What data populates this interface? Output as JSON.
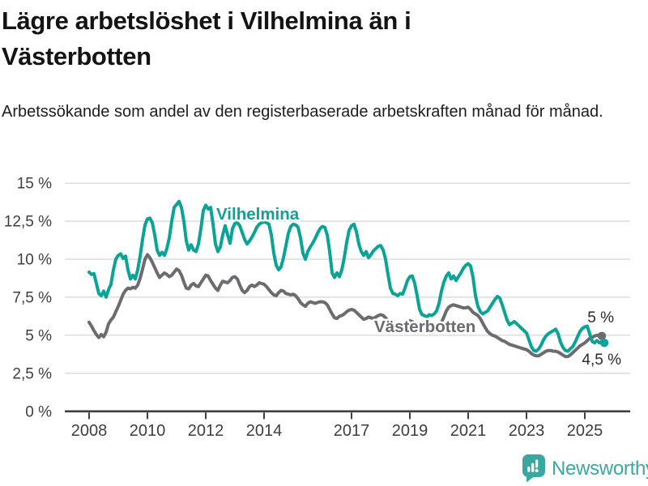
{
  "header": {
    "title": "Lägre arbetslöshet i Vilhelmina än i Västerbotten",
    "subtitle": "Arbetssökande som andel av den registerbaserade arbetskraften månad för månad."
  },
  "branding": {
    "name": "Newsworthy",
    "icon": "speech-bubble-bar-chart-icon",
    "color": "#3ba7a0"
  },
  "chart_data": {
    "type": "line",
    "x_unit": "months",
    "x_start_year": 2008,
    "x_step_months": 1,
    "grid": true,
    "style": {
      "grid_color": "#d6d6d6",
      "axis_color": "#3e3e3e",
      "tick_label_color": "#3e3e3e",
      "annotation_color": "#2a2a2a"
    },
    "y_axis": {
      "min": 0,
      "max": 15,
      "tick_values": [
        0,
        2.5,
        5,
        7.5,
        10,
        12.5,
        15
      ],
      "tick_labels": [
        "0 %",
        "2,5 %",
        "5 %",
        "7,5 %",
        "10 %",
        "12,5 %",
        "15 %"
      ]
    },
    "x_axis": {
      "tick_years": [
        2008,
        2010,
        2012,
        2014,
        2017,
        2019,
        2021,
        2023,
        2025
      ],
      "tick_labels": [
        "2008",
        "2010",
        "2012",
        "2014",
        "2017",
        "2019",
        "2021",
        "2023",
        "2025"
      ]
    },
    "series": [
      {
        "name": "Vilhelmina",
        "color": "#0aa396",
        "end_value_label": "4,5 %",
        "values": [
          9.15,
          9.0,
          9.05,
          8.4,
          7.75,
          7.6,
          7.9,
          7.5,
          8.0,
          8.35,
          9.3,
          10.0,
          10.25,
          10.35,
          10.05,
          10.2,
          9.3,
          8.7,
          8.95,
          8.7,
          9.3,
          10.2,
          11.3,
          12.25,
          12.65,
          12.7,
          12.4,
          11.6,
          10.6,
          10.25,
          10.45,
          10.25,
          10.7,
          11.4,
          12.5,
          13.4,
          13.6,
          13.8,
          13.4,
          12.5,
          11.2,
          10.6,
          10.95,
          10.6,
          10.5,
          11.0,
          12.0,
          13.2,
          13.55,
          13.3,
          13.4,
          12.3,
          11.0,
          10.5,
          10.8,
          11.6,
          12.2,
          11.6,
          11.05,
          12.0,
          12.35,
          12.4,
          12.2,
          11.75,
          11.3,
          11.0,
          11.2,
          11.45,
          11.75,
          12.1,
          12.3,
          12.4,
          12.45,
          12.4,
          12.3,
          11.6,
          10.4,
          9.6,
          9.3,
          9.5,
          10.1,
          10.9,
          11.7,
          12.15,
          12.3,
          12.25,
          12.1,
          11.4,
          10.4,
          10.0,
          10.5,
          10.8,
          11.05,
          11.35,
          11.7,
          12.0,
          12.15,
          12.1,
          11.6,
          10.5,
          9.1,
          8.8,
          9.1,
          8.85,
          9.3,
          10.1,
          11.1,
          11.9,
          12.2,
          12.3,
          11.8,
          11.0,
          10.5,
          10.25,
          10.5,
          10.1,
          10.3,
          10.55,
          10.7,
          10.85,
          10.9,
          10.6,
          10.0,
          9.0,
          8.1,
          7.75,
          7.7,
          7.6,
          7.75,
          7.7,
          8.1,
          8.6,
          8.85,
          8.9,
          8.4,
          7.6,
          6.7,
          6.35,
          6.3,
          6.2,
          6.35,
          6.3,
          6.4,
          6.6,
          7.1,
          7.9,
          8.5,
          8.9,
          9.1,
          8.7,
          8.9,
          8.6,
          8.85,
          9.1,
          9.4,
          9.6,
          9.7,
          9.55,
          8.8,
          7.6,
          6.9,
          6.55,
          6.4,
          6.5,
          6.6,
          6.85,
          7.1,
          7.35,
          7.55,
          7.45,
          7.0,
          6.5,
          6.0,
          5.7,
          5.8,
          5.9,
          5.75,
          5.6,
          5.45,
          5.3,
          5.15,
          4.7,
          4.25,
          4.0,
          3.95,
          4.1,
          4.35,
          4.7,
          4.95,
          5.1,
          5.2,
          5.3,
          5.4,
          5.1,
          4.55,
          4.2,
          4.0,
          3.95,
          4.1,
          4.25,
          4.55,
          4.9,
          5.25,
          5.45,
          5.55,
          5.6,
          5.1,
          4.6,
          4.5,
          4.65,
          4.5,
          4.6,
          4.5
        ]
      },
      {
        "name": "Västerbotten",
        "color": "#6b6b70",
        "end_value_label": "5 %",
        "values": [
          5.85,
          5.6,
          5.3,
          5.05,
          4.85,
          5.05,
          4.9,
          5.2,
          5.75,
          6.0,
          6.2,
          6.55,
          6.9,
          7.3,
          7.7,
          7.95,
          8.1,
          8.05,
          8.15,
          8.1,
          8.3,
          8.75,
          9.35,
          10.0,
          10.3,
          10.1,
          9.8,
          9.45,
          9.1,
          8.8,
          8.95,
          9.1,
          9.0,
          8.85,
          8.95,
          9.15,
          9.35,
          9.25,
          8.95,
          8.5,
          8.1,
          8.05,
          8.3,
          8.4,
          8.25,
          8.2,
          8.45,
          8.7,
          8.95,
          8.9,
          8.6,
          8.35,
          8.1,
          7.95,
          8.3,
          8.55,
          8.5,
          8.45,
          8.6,
          8.8,
          8.85,
          8.7,
          8.3,
          7.95,
          7.8,
          7.95,
          8.2,
          8.3,
          8.2,
          8.3,
          8.45,
          8.4,
          8.35,
          8.2,
          8.0,
          7.8,
          7.65,
          7.6,
          7.8,
          7.95,
          7.9,
          7.75,
          7.7,
          7.65,
          7.7,
          7.6,
          7.4,
          7.15,
          7.0,
          6.9,
          7.1,
          7.2,
          7.15,
          7.1,
          7.15,
          7.2,
          7.2,
          7.15,
          7.0,
          6.7,
          6.4,
          6.15,
          6.1,
          6.25,
          6.3,
          6.4,
          6.55,
          6.65,
          6.7,
          6.65,
          6.5,
          6.35,
          6.2,
          6.05,
          6.1,
          6.2,
          6.15,
          6.1,
          6.2,
          6.3,
          6.35,
          6.3,
          6.15,
          5.95,
          5.75,
          5.6,
          5.65,
          5.8,
          5.75,
          5.7,
          5.75,
          5.85,
          5.95,
          5.9,
          5.75,
          5.6,
          5.45,
          5.4,
          5.5,
          5.6,
          5.55,
          5.5,
          5.55,
          5.65,
          5.75,
          5.85,
          6.2,
          6.6,
          6.85,
          6.95,
          7.0,
          6.95,
          6.9,
          6.85,
          6.8,
          6.8,
          6.85,
          6.7,
          6.5,
          6.4,
          6.3,
          6.1,
          5.8,
          5.5,
          5.25,
          5.1,
          5.0,
          4.95,
          4.85,
          4.75,
          4.65,
          4.6,
          4.5,
          4.4,
          4.35,
          4.3,
          4.25,
          4.2,
          4.15,
          4.1,
          4.05,
          3.95,
          3.8,
          3.7,
          3.65,
          3.65,
          3.75,
          3.85,
          3.95,
          4.0,
          4.0,
          3.95,
          3.95,
          3.9,
          3.8,
          3.7,
          3.6,
          3.6,
          3.7,
          3.85,
          4.0,
          4.15,
          4.3,
          4.4,
          4.5,
          4.65,
          4.8,
          4.85,
          4.95,
          5.0,
          5.0,
          4.95
        ]
      }
    ]
  }
}
